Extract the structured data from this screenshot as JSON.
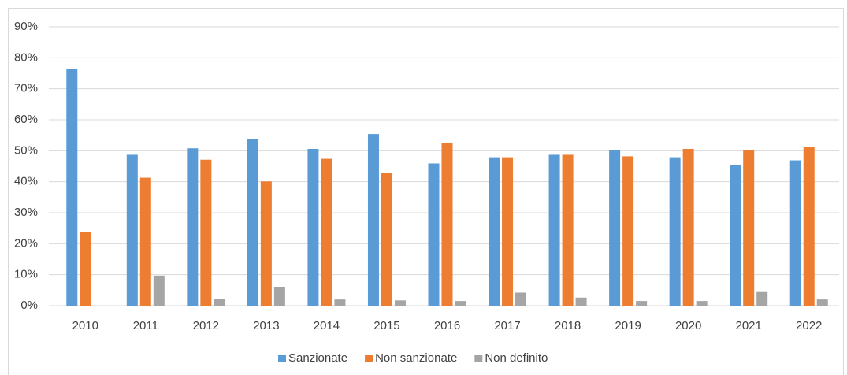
{
  "chart_data": {
    "type": "bar",
    "categories": [
      "2010",
      "2011",
      "2012",
      "2013",
      "2014",
      "2015",
      "2016",
      "2017",
      "2018",
      "2019",
      "2020",
      "2021",
      "2022"
    ],
    "series": [
      {
        "name": "Sanzionate",
        "color": "#5b9bd5",
        "values": [
          76.3,
          48.7,
          50.8,
          53.7,
          50.6,
          55.4,
          45.9,
          47.9,
          48.7,
          50.3,
          47.9,
          45.4,
          46.9
        ]
      },
      {
        "name": "Non sanzionate",
        "color": "#ed7d31",
        "values": [
          23.7,
          41.3,
          47.1,
          40.1,
          47.4,
          42.9,
          52.6,
          47.9,
          48.7,
          48.2,
          50.6,
          50.2,
          51.1
        ]
      },
      {
        "name": "Non definito",
        "color": "#a5a5a5",
        "values": [
          0,
          9.7,
          2.1,
          6.1,
          2.0,
          1.7,
          1.5,
          4.2,
          2.6,
          1.5,
          1.5,
          4.4,
          2.0
        ]
      }
    ],
    "ylim": [
      0,
      90
    ],
    "yticks": [
      {
        "value": 0,
        "label": "0%"
      },
      {
        "value": 10,
        "label": "10%"
      },
      {
        "value": 20,
        "label": "20%"
      },
      {
        "value": 30,
        "label": "30%"
      },
      {
        "value": 40,
        "label": "40%"
      },
      {
        "value": 50,
        "label": "50%"
      },
      {
        "value": 60,
        "label": "60%"
      },
      {
        "value": 70,
        "label": "70%"
      },
      {
        "value": 80,
        "label": "80%"
      },
      {
        "value": 90,
        "label": "90%"
      }
    ],
    "grid": true,
    "legend": "bottom"
  }
}
